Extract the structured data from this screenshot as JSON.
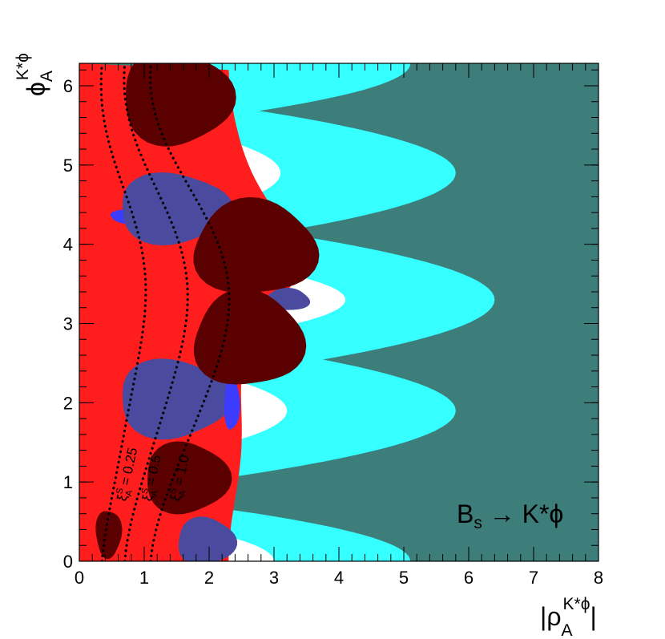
{
  "chart_data": {
    "type": "heatmap",
    "xlim": [
      0,
      8
    ],
    "ylim": [
      0,
      6.2832
    ],
    "x_ticks": [
      0,
      1,
      2,
      3,
      4,
      5,
      6,
      7,
      8
    ],
    "y_ticks": [
      0,
      1,
      2,
      3,
      4,
      5,
      6
    ],
    "x_label": {
      "base": "|ρ",
      "sub": "A",
      "sup": "K*ϕ",
      "close": "|"
    },
    "y_label": {
      "base": "ϕ",
      "sub": "A",
      "sup": "K*ϕ"
    },
    "annotation": {
      "text": "B",
      "sub": "s",
      "rest": " → K*ϕ"
    },
    "contours": [
      {
        "label": "ξ",
        "label_sub": "A",
        "label_sup": "S",
        "label_rest": " = 0.25",
        "value": 0.25,
        "x_at_phi_0": 0.35,
        "amplitude": 0.33
      },
      {
        "label": "ξ",
        "label_sub": "A",
        "label_sup": "S",
        "label_rest": " = 0.5",
        "value": 0.5,
        "x_at_phi_0": 0.7,
        "amplitude": 0.48
      },
      {
        "label": "ξ",
        "label_sub": "A",
        "label_sup": "S",
        "label_rest": " = 1.0",
        "value": 1.0,
        "x_at_phi_0": 1.1,
        "amplitude": 0.6
      }
    ],
    "region_colors": {
      "background": "#3d7d7a",
      "cyan": "#35ffff",
      "white": "#ffffff",
      "red": "#ff1d1d",
      "dark_red": "#5a0000",
      "blue": "#3c3cff",
      "slate_blue": "#4a4a9e"
    },
    "bands": {
      "cyan_lobe_centers": [
        0.0,
        1.9,
        3.3,
        4.9,
        6.28
      ],
      "cyan_lobe_extent": [
        5.1,
        5.8,
        6.4,
        5.8,
        5.1
      ],
      "cyan_half_height": [
        0.35,
        0.45,
        0.5,
        0.45,
        0.35
      ],
      "white_lobe_extent": [
        3.0,
        3.2,
        4.1,
        3.1,
        0
      ],
      "red_edge": 2.4
    }
  }
}
